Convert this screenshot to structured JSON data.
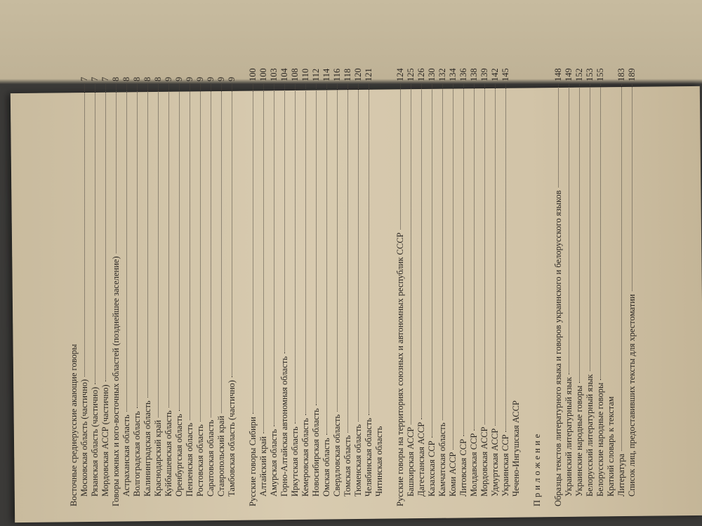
{
  "contents": [
    {
      "heading": "Восточные среднерусские акающие говоры",
      "items": [
        {
          "title": "Московская область (частично)",
          "page": "7"
        },
        {
          "title": "Рязанская область (частично)",
          "page": "7"
        },
        {
          "title": "Мордовская АССР (частично)",
          "page": "7"
        }
      ]
    },
    {
      "heading": "Говоры южных и юго-восточных областей (позднейшее заселение)",
      "page": "8",
      "items": [
        {
          "title": "Астраханская область",
          "page": "8"
        },
        {
          "title": "Волгоградская область",
          "page": "8"
        },
        {
          "title": "Калининградская область",
          "page": "8"
        },
        {
          "title": "Краснодарский край",
          "page": "8"
        },
        {
          "title": "Куйбышевская область",
          "page": "9"
        },
        {
          "title": "Оренбургская область",
          "page": "9"
        },
        {
          "title": "Пензенская область",
          "page": "9"
        },
        {
          "title": "Ростовская область",
          "page": "9"
        },
        {
          "title": "Саратовская область",
          "page": "9"
        },
        {
          "title": "Ставропольский край",
          "page": "9"
        },
        {
          "title": "Тамбовская область (частично)",
          "page": "9"
        }
      ]
    },
    {
      "heading": "Русские говоры Сибири",
      "page": "100",
      "gap": true,
      "items": [
        {
          "title": "Алтайский край",
          "page": "100"
        },
        {
          "title": "Амурская область",
          "page": "103"
        },
        {
          "title": "Горно-Алтайская автономная область",
          "page": "104"
        },
        {
          "title": "Иркутская область",
          "page": "108"
        },
        {
          "title": "Кемеровская область",
          "page": "110"
        },
        {
          "title": "Новосибирская область",
          "page": "112"
        },
        {
          "title": "Омская область",
          "page": "114"
        },
        {
          "title": "Свердловская область",
          "page": "116"
        },
        {
          "title": "Томская область",
          "page": "118"
        },
        {
          "title": "Тюменская область",
          "page": "120"
        },
        {
          "title": "Челябинская область",
          "page": "121"
        },
        {
          "title": "Читинская область"
        }
      ]
    },
    {
      "heading": "Русские говоры на территориях союзных и автономных республик СССР",
      "page": "124",
      "gap": true,
      "items": [
        {
          "title": "Башкирская АССР",
          "page": "125"
        },
        {
          "title": "Дагестанская АССР",
          "page": "126"
        },
        {
          "title": "Казахская ССР",
          "page": "130"
        },
        {
          "title": "Камчатская область",
          "page": "132"
        },
        {
          "title": "Коми АССР",
          "page": "134"
        },
        {
          "title": "Литовская ССР",
          "page": "136"
        },
        {
          "title": "Молдавская ССР",
          "page": "138"
        },
        {
          "title": "Мордовская АССР",
          "page": "139"
        },
        {
          "title": "Удмуртская АССР",
          "page": "142"
        },
        {
          "title": "Украинская ССР",
          "page": "145"
        },
        {
          "title": "Чечено-Ингушская АССР"
        }
      ]
    }
  ],
  "appendix": {
    "label": "Приложение",
    "heading": "Образцы текстов литературного языка и говоров украинского и белорусского языков",
    "page": "148",
    "items": [
      {
        "title": "Украинский литературный язык",
        "page": "149"
      },
      {
        "title": "Украинские народные говоры",
        "page": "152"
      },
      {
        "title": "Белорусский литературный язык",
        "page": "153"
      },
      {
        "title": "Белорусские народные говоры",
        "page": "155"
      },
      {
        "title": "Краткий словарь к текстам"
      },
      {
        "title": "Литература",
        "page": "183"
      },
      {
        "title": "Список лиц, предоставивших тексты для хрестоматии",
        "page": "189"
      }
    ]
  }
}
